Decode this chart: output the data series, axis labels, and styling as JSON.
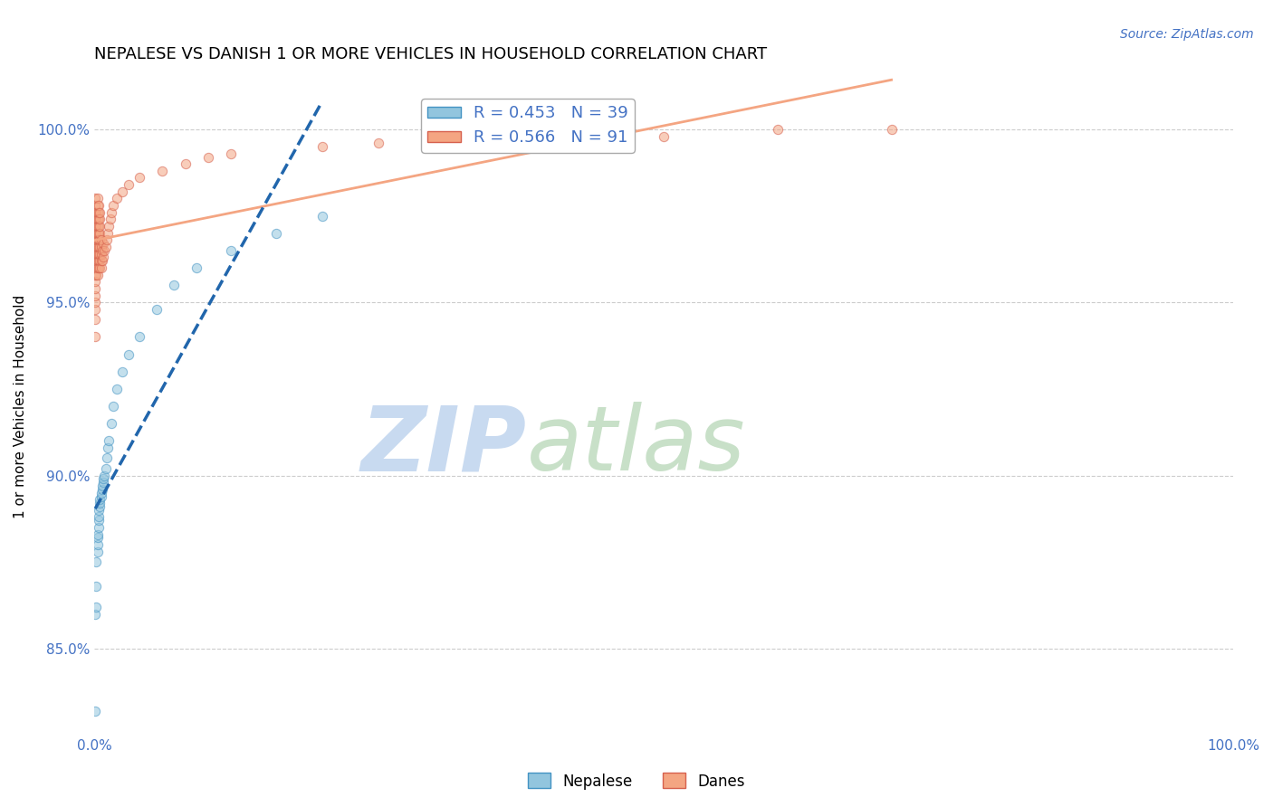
{
  "title": "NEPALESE VS DANISH 1 OR MORE VEHICLES IN HOUSEHOLD CORRELATION CHART",
  "source": "Source: ZipAtlas.com",
  "ylabel": "1 or more Vehicles in Household",
  "ytick_labels": [
    "100.0%",
    "95.0%",
    "90.0%",
    "85.0%"
  ],
  "ytick_values": [
    1.0,
    0.95,
    0.9,
    0.85
  ],
  "xlim": [
    0.0,
    1.0
  ],
  "ylim": [
    0.825,
    1.015
  ],
  "watermark_zip": "ZIP",
  "watermark_atlas": "atlas",
  "legend_r_nepalese": "R = 0.453",
  "legend_n_nepalese": "N = 39",
  "legend_r_danes": "R = 0.566",
  "legend_n_danes": "N = 91",
  "nepalese_color": "#92c5de",
  "nepalese_edge": "#4393c3",
  "danes_color": "#f4a582",
  "danes_edge": "#d6604d",
  "trendline_nepalese_color": "#2166ac",
  "trendline_danes_color": "#f4a582",
  "marker_size": 55,
  "marker_alpha": 0.55,
  "background_color": "#ffffff",
  "grid_color": "#cccccc",
  "title_fontsize": 13,
  "label_fontsize": 11,
  "tick_fontsize": 11,
  "watermark_zip_color": "#c8d8f0",
  "watermark_atlas_color": "#d8e8d8",
  "watermark_fontsize": 72,
  "source_color": "#4472c4",
  "source_fontsize": 10,
  "nepalese_x": [
    0.001,
    0.001,
    0.002,
    0.002,
    0.002,
    0.003,
    0.003,
    0.003,
    0.003,
    0.004,
    0.004,
    0.004,
    0.004,
    0.005,
    0.005,
    0.005,
    0.006,
    0.006,
    0.007,
    0.007,
    0.008,
    0.008,
    0.009,
    0.01,
    0.011,
    0.012,
    0.013,
    0.015,
    0.017,
    0.02,
    0.025,
    0.03,
    0.04,
    0.055,
    0.07,
    0.09,
    0.12,
    0.16,
    0.2
  ],
  "nepalese_y": [
    0.832,
    0.86,
    0.862,
    0.868,
    0.875,
    0.878,
    0.88,
    0.882,
    0.883,
    0.885,
    0.887,
    0.888,
    0.89,
    0.891,
    0.892,
    0.893,
    0.894,
    0.895,
    0.896,
    0.897,
    0.898,
    0.899,
    0.9,
    0.902,
    0.905,
    0.908,
    0.91,
    0.915,
    0.92,
    0.925,
    0.93,
    0.935,
    0.94,
    0.948,
    0.955,
    0.96,
    0.965,
    0.97,
    0.975
  ],
  "danes_x": [
    0.001,
    0.001,
    0.001,
    0.001,
    0.001,
    0.001,
    0.001,
    0.001,
    0.001,
    0.001,
    0.001,
    0.001,
    0.001,
    0.001,
    0.001,
    0.001,
    0.001,
    0.001,
    0.001,
    0.002,
    0.002,
    0.002,
    0.002,
    0.002,
    0.002,
    0.002,
    0.002,
    0.002,
    0.002,
    0.003,
    0.003,
    0.003,
    0.003,
    0.003,
    0.003,
    0.003,
    0.003,
    0.003,
    0.003,
    0.003,
    0.003,
    0.004,
    0.004,
    0.004,
    0.004,
    0.004,
    0.004,
    0.004,
    0.004,
    0.004,
    0.004,
    0.005,
    0.005,
    0.005,
    0.005,
    0.005,
    0.005,
    0.005,
    0.005,
    0.005,
    0.006,
    0.006,
    0.006,
    0.006,
    0.006,
    0.007,
    0.007,
    0.008,
    0.008,
    0.009,
    0.01,
    0.011,
    0.012,
    0.013,
    0.014,
    0.015,
    0.017,
    0.02,
    0.025,
    0.03,
    0.04,
    0.06,
    0.08,
    0.1,
    0.12,
    0.2,
    0.25,
    0.3,
    0.5,
    0.6,
    0.7
  ],
  "danes_y": [
    0.94,
    0.945,
    0.948,
    0.95,
    0.952,
    0.954,
    0.956,
    0.958,
    0.96,
    0.962,
    0.964,
    0.966,
    0.968,
    0.97,
    0.972,
    0.974,
    0.976,
    0.978,
    0.98,
    0.958,
    0.96,
    0.962,
    0.964,
    0.966,
    0.968,
    0.97,
    0.972,
    0.974,
    0.976,
    0.958,
    0.96,
    0.962,
    0.964,
    0.966,
    0.968,
    0.97,
    0.972,
    0.974,
    0.976,
    0.978,
    0.98,
    0.96,
    0.962,
    0.964,
    0.966,
    0.968,
    0.97,
    0.972,
    0.974,
    0.976,
    0.978,
    0.96,
    0.962,
    0.964,
    0.966,
    0.968,
    0.97,
    0.972,
    0.974,
    0.976,
    0.96,
    0.962,
    0.964,
    0.966,
    0.968,
    0.962,
    0.965,
    0.963,
    0.967,
    0.965,
    0.966,
    0.968,
    0.97,
    0.972,
    0.974,
    0.976,
    0.978,
    0.98,
    0.982,
    0.984,
    0.986,
    0.988,
    0.99,
    0.992,
    0.993,
    0.995,
    0.996,
    0.997,
    0.998,
    1.0,
    1.0
  ]
}
